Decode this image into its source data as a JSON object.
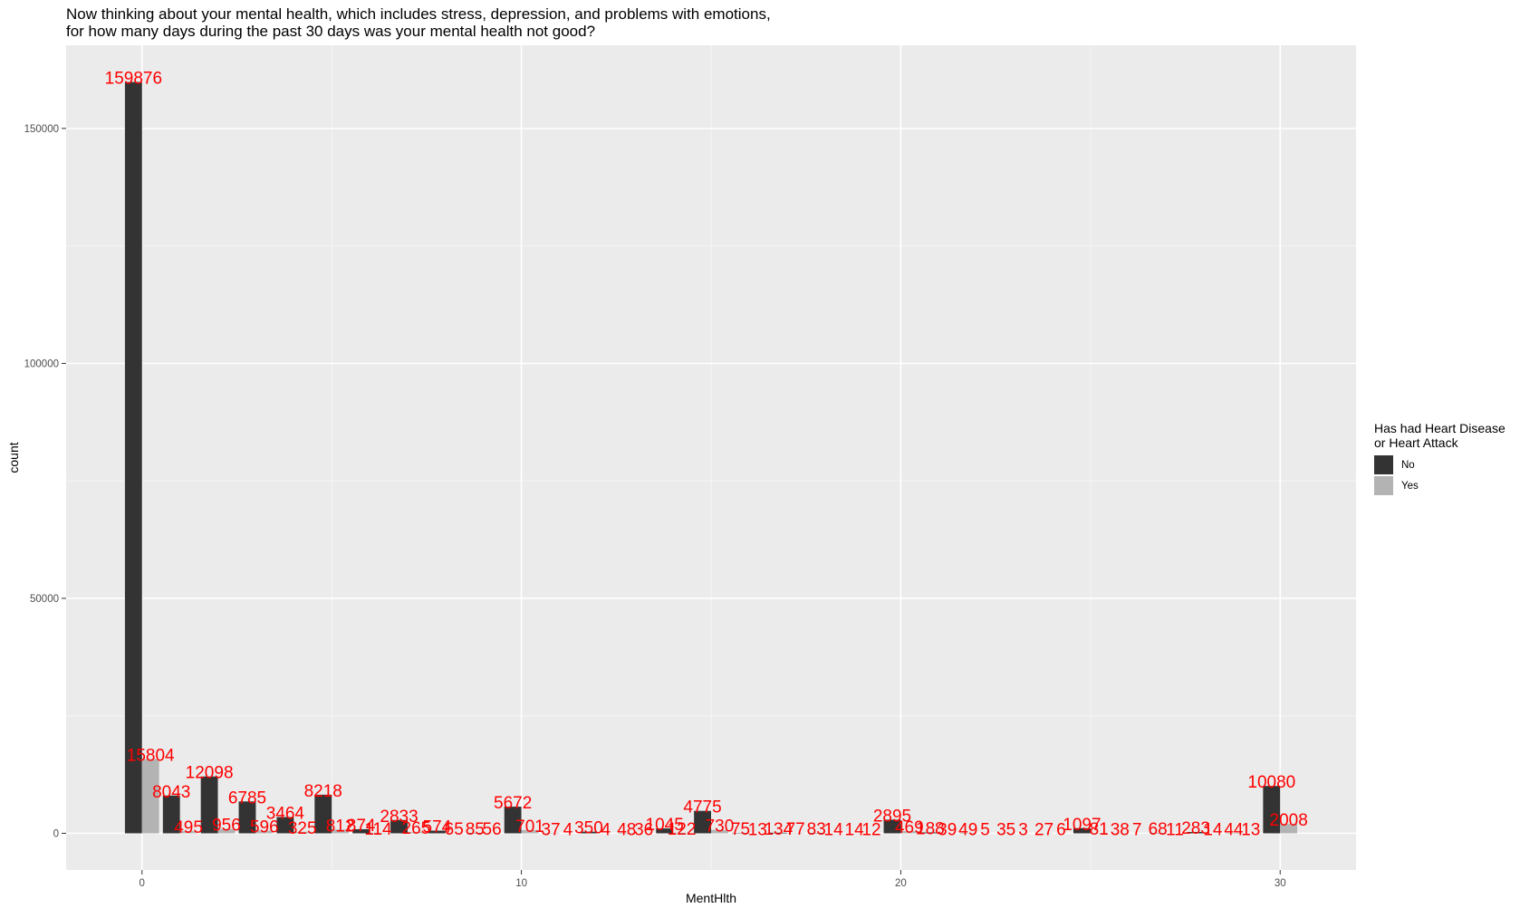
{
  "chart_data": {
    "type": "bar",
    "title": "Now thinking about your mental health, which includes stress, depression, and problems with emotions,",
    "subtitle": "for how many days during the past 30 days was your mental health not good?",
    "xlabel": "MentHlth",
    "ylabel": "count",
    "xlim": [
      -2,
      32
    ],
    "ylim": [
      -7800,
      167700
    ],
    "x_ticks": [
      0,
      10,
      20,
      30
    ],
    "y_ticks": [
      0,
      50000,
      100000,
      150000
    ],
    "grid": true,
    "legend": {
      "position": "right",
      "title_line1": "Has had Heart Disease",
      "title_line2": "or Heart Attack",
      "entries": [
        "No",
        "Yes"
      ]
    },
    "colors": {
      "No": "#333333",
      "Yes": "#b3b3b3",
      "label": "#ff0000",
      "panel": "#ebebeb"
    },
    "x": [
      0,
      1,
      2,
      3,
      4,
      5,
      6,
      7,
      8,
      9,
      10,
      11,
      12,
      13,
      14,
      15,
      16,
      17,
      18,
      19,
      20,
      21,
      22,
      23,
      24,
      25,
      26,
      27,
      28,
      29,
      30
    ],
    "series": [
      {
        "name": "No",
        "values": [
          159876,
          8043,
          12098,
          6785,
          3464,
          8218,
          874,
          2833,
          574,
          85,
          5672,
          37,
          350,
          48,
          1045,
          4775,
          75,
          134,
          83,
          14,
          2895,
          188,
          49,
          35,
          27,
          1097,
          38,
          68,
          283,
          44,
          10080
        ]
      },
      {
        "name": "Yes",
        "values": [
          15804,
          495,
          956,
          596,
          325,
          812,
          114,
          265,
          65,
          56,
          701,
          4,
          4,
          36,
          122,
          730,
          13,
          77,
          14,
          12,
          469,
          39,
          5,
          3,
          6,
          81,
          7,
          11,
          14,
          13,
          2008
        ]
      }
    ]
  }
}
